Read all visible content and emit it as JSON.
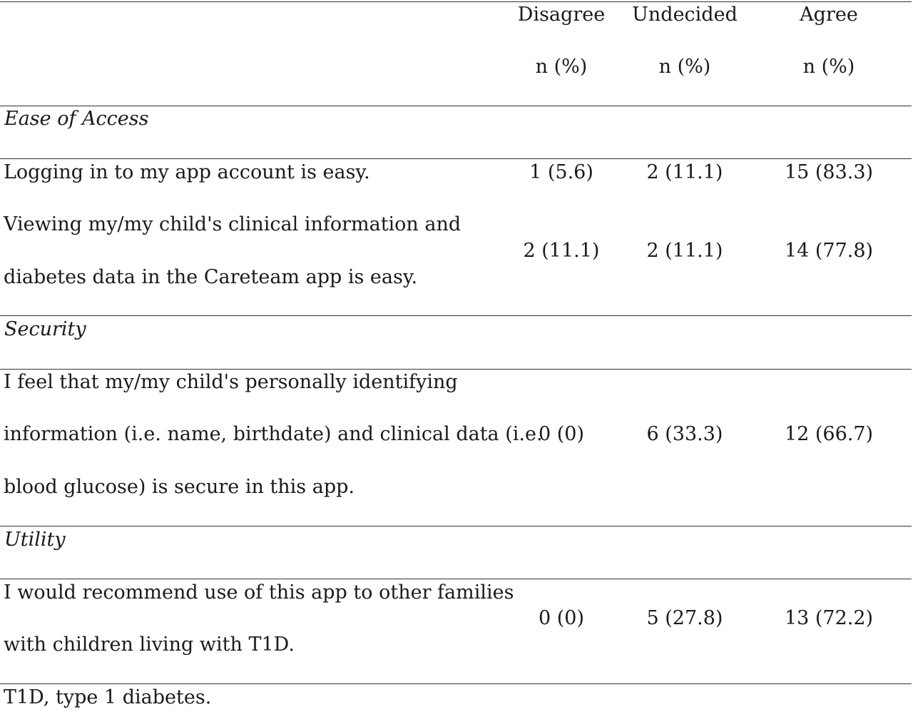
{
  "header": {
    "disagree": "Disagree",
    "undecided": "Undecided",
    "agree": "Agree",
    "unit": "n (%)"
  },
  "sections": [
    {
      "title": "Ease of Access",
      "rows": [
        {
          "lines": [
            "Logging in to my app account is easy."
          ],
          "disagree": "1 (5.6)",
          "undecided": "2 (11.1)",
          "agree": "15 (83.3)"
        },
        {
          "lines": [
            "Viewing my/my child's clinical information and",
            "diabetes data in the Careteam app is easy."
          ],
          "disagree": "2 (11.1)",
          "undecided": "2 (11.1)",
          "agree": "14 (77.8)"
        }
      ]
    },
    {
      "title": "Security",
      "rows": [
        {
          "lines": [
            "I feel that my/my child's personally identifying",
            "information (i.e. name, birthdate) and clinical data (i.e.",
            "blood glucose) is secure in this app."
          ],
          "disagree": "0 (0)",
          "undecided": "6 (33.3)",
          "agree": "12 (66.7)"
        }
      ]
    },
    {
      "title": "Utility",
      "rows": [
        {
          "lines": [
            "I would recommend use of this app to other families",
            "with children living with T1D."
          ],
          "disagree": "0 (0)",
          "undecided": "5 (27.8)",
          "agree": "13 (72.2)"
        }
      ]
    }
  ],
  "footnote": "T1D, type 1 diabetes."
}
